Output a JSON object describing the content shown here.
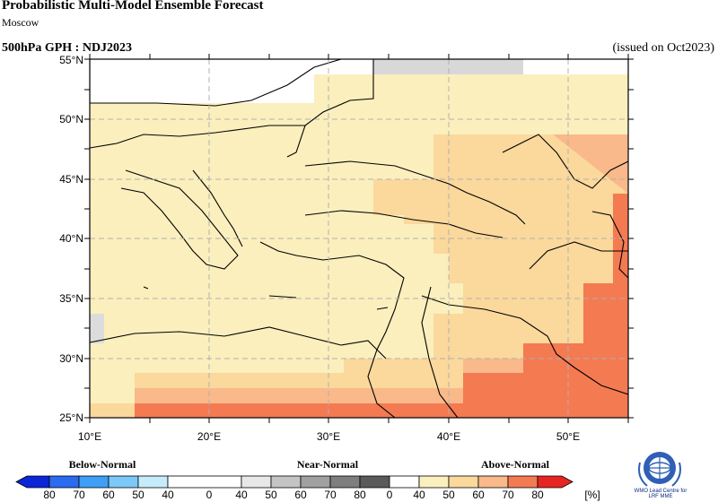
{
  "header": {
    "title": "Probabilistic Multi-Model Ensemble Forecast",
    "subtitle": "Moscow",
    "variable": "500hPa GPH : NDJ2023",
    "issued": "(issued on Oct2023)"
  },
  "map": {
    "region": {
      "lon": [
        10,
        55
      ],
      "lat": [
        25,
        55
      ]
    },
    "lon_ticks": [
      "10°E",
      "20°E",
      "30°E",
      "40°E",
      "50°E"
    ],
    "lat_ticks": [
      "25°N",
      "30°N",
      "35°N",
      "40°N",
      "45°N",
      "50°N",
      "55°N"
    ],
    "grid": "dashed",
    "ocean_color": "#ffffff",
    "coast_color": "#000000"
  },
  "categories": {
    "below": "Below-Normal",
    "near": "Near-Normal",
    "above": "Above-Normal"
  },
  "colorbar": {
    "unit": "[%]",
    "below": [
      {
        "value": "80",
        "color": "#0a26d6"
      },
      {
        "value": "70",
        "color": "#2a6bf0"
      },
      {
        "value": "60",
        "color": "#3f9ef5"
      },
      {
        "value": "50",
        "color": "#7cc8f8"
      },
      {
        "value": "40",
        "color": "#c6ecfb"
      }
    ],
    "near": [
      {
        "value": "40",
        "color": "#e8e8e8"
      },
      {
        "value": "50",
        "color": "#c4c4c4"
      },
      {
        "value": "60",
        "color": "#a0a0a0"
      },
      {
        "value": "70",
        "color": "#7e7e7e"
      },
      {
        "value": "80",
        "color": "#5a5a5a"
      }
    ],
    "above": [
      {
        "value": "40",
        "color": "#fbefbd"
      },
      {
        "value": "50",
        "color": "#fbd89c"
      },
      {
        "value": "60",
        "color": "#f9b98a"
      },
      {
        "value": "70",
        "color": "#f47a52"
      },
      {
        "value": "80",
        "color": "#e52521"
      }
    ],
    "zero_labels": [
      "0",
      "0"
    ]
  },
  "logo": {
    "icon": "wmo-emblem-icon",
    "text_line1": "WMO Lead Centre for",
    "text_line2": "LRF MME"
  }
}
